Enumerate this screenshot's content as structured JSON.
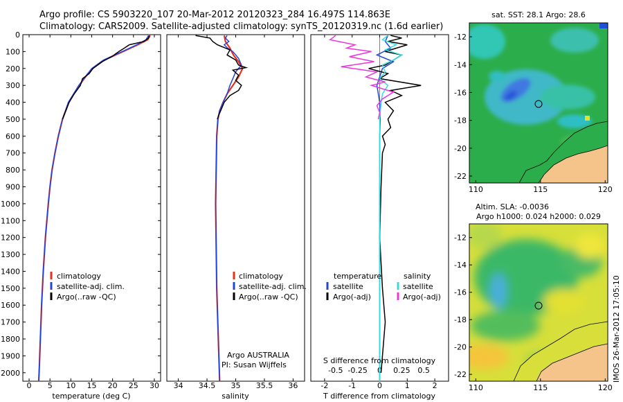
{
  "header": {
    "line1": "Argo profile: CS 5903220_107 20-Mar-2012 20120323_284 16.497S 114.863E",
    "line2": "Climatology: CARS2009. Satellite-adjusted climatology: synTS_20120319.nc (1.6d earlier)"
  },
  "colors": {
    "climatology": "#e8301a",
    "satellite": "#2244dd",
    "argo": "#000000",
    "sal_satellite": "#33dddd",
    "sal_argo": "#ee33dd",
    "land": "#f4c48a"
  },
  "chart_data": [
    {
      "type": "line",
      "panel": "temperature",
      "xlabel": "temperature (deg C)",
      "ylabel": "",
      "xlim": [
        -1.5,
        31.5
      ],
      "ylim": [
        2050,
        0
      ],
      "xticks": [
        "0",
        "5",
        "10",
        "15",
        "20",
        "25",
        "30"
      ],
      "xtick_values": [
        0,
        5,
        10,
        15,
        20,
        25,
        30
      ],
      "yticks": [
        "0",
        "100",
        "200",
        "300",
        "400",
        "500",
        "600",
        "700",
        "800",
        "900",
        "1000",
        "1100",
        "1200",
        "1300",
        "1400",
        "1500",
        "1600",
        "1700",
        "1800",
        "1900",
        "2000"
      ],
      "ytick_values": [
        0,
        100,
        200,
        300,
        400,
        500,
        600,
        700,
        800,
        900,
        1000,
        1100,
        1200,
        1300,
        1400,
        1500,
        1600,
        1700,
        1800,
        1900,
        2000
      ],
      "legend": [
        "climatology",
        "satellite-adj. clim.",
        "Argo(..raw -QC)"
      ],
      "series": [
        {
          "name": "climatology",
          "color_key": "climatology",
          "depth": [
            5,
            30,
            60,
            100,
            150,
            200,
            250,
            300,
            400,
            500,
            600,
            700,
            800,
            900,
            1000,
            1200,
            1400,
            1600,
            1800,
            2000,
            2050
          ],
          "values": [
            29.0,
            28.4,
            26.0,
            22.5,
            18.0,
            15.2,
            13.5,
            12.0,
            9.5,
            8.0,
            7.0,
            6.2,
            5.5,
            5.0,
            4.6,
            3.9,
            3.4,
            3.0,
            2.7,
            2.4,
            2.3
          ]
        },
        {
          "name": "satellite-adj. clim.",
          "color_key": "satellite",
          "depth": [
            5,
            30,
            60,
            100,
            150,
            200,
            250,
            300,
            400,
            500,
            600,
            700,
            800,
            900,
            1000,
            1200,
            1400,
            1600,
            1800,
            2000,
            2050
          ],
          "values": [
            28.6,
            28.0,
            25.8,
            22.3,
            17.8,
            15.0,
            13.4,
            11.9,
            9.4,
            8.0,
            7.0,
            6.2,
            5.5,
            5.0,
            4.6,
            3.9,
            3.4,
            3.0,
            2.7,
            2.4,
            2.3
          ]
        },
        {
          "name": "Argo(..raw -QC)",
          "color_key": "argo",
          "depth": [
            5,
            20,
            40,
            60,
            80,
            100,
            130,
            160,
            200,
            230,
            260,
            300,
            350,
            400,
            450,
            500
          ],
          "values": [
            28.8,
            28.6,
            27.5,
            24.0,
            22.8,
            21.5,
            19.8,
            17.5,
            15.3,
            14.4,
            12.8,
            12.3,
            10.8,
            9.6,
            8.8,
            8.0
          ]
        }
      ]
    },
    {
      "type": "line",
      "panel": "salinity",
      "xlabel": "salinity",
      "xlim": [
        33.8,
        36.2
      ],
      "ylim": [
        2050,
        0
      ],
      "xticks": [
        "34",
        "34.5",
        "35",
        "35.5",
        "36"
      ],
      "xtick_values": [
        34,
        34.5,
        35,
        35.5,
        36
      ],
      "legend": [
        "climatology",
        "satellite-adj. clim.",
        "Argo(..raw -QC)"
      ],
      "annotation": [
        "Argo AUSTRALIA",
        "PI: Susan Wijffels"
      ],
      "series": [
        {
          "name": "climatology",
          "color_key": "climatology",
          "depth": [
            5,
            40,
            80,
            120,
            160,
            200,
            250,
            300,
            350,
            400,
            450,
            500,
            600,
            800,
            1000,
            1500,
            2050
          ],
          "values": [
            34.8,
            34.82,
            34.9,
            34.96,
            35.05,
            35.12,
            35.05,
            34.95,
            34.85,
            34.78,
            34.72,
            34.69,
            34.67,
            34.66,
            34.65,
            34.67,
            34.72
          ]
        },
        {
          "name": "satellite-adj. clim.",
          "color_key": "satellite",
          "depth": [
            5,
            20,
            40,
            60,
            80,
            100,
            140,
            180,
            220,
            260,
            300,
            350,
            400,
            450,
            500,
            600,
            800,
            1000,
            1500,
            2050
          ],
          "values": [
            34.85,
            34.82,
            34.88,
            34.8,
            34.86,
            34.95,
            35.05,
            35.1,
            35.0,
            34.95,
            34.9,
            34.85,
            34.78,
            34.72,
            34.69,
            34.67,
            34.66,
            34.65,
            34.67,
            34.72
          ]
        },
        {
          "name": "Argo(..raw -QC)",
          "color_key": "argo",
          "depth": [
            5,
            20,
            40,
            60,
            90,
            120,
            150,
            180,
            195,
            210,
            240,
            270,
            300,
            330,
            360,
            400,
            440,
            480,
            500
          ],
          "values": [
            34.3,
            34.55,
            34.6,
            34.68,
            34.9,
            34.85,
            35.0,
            35.05,
            35.18,
            34.95,
            35.05,
            35.0,
            35.1,
            35.05,
            34.9,
            34.8,
            34.75,
            34.7,
            34.68
          ]
        }
      ]
    },
    {
      "type": "line",
      "panel": "difference",
      "xlabel": "T difference from climatology",
      "xlabel_top": "S difference from climatology",
      "xlim": [
        -2.5,
        2.5
      ],
      "ylim": [
        2050,
        0
      ],
      "xticks": [
        "-2",
        "-1",
        "0",
        "1",
        "2"
      ],
      "xtick_values": [
        -2,
        -1,
        0,
        1,
        2
      ],
      "sticks": [
        "-0.5",
        "-0.25",
        "0",
        "0.25",
        "0.5"
      ],
      "stick_values": [
        -1.6,
        -0.8,
        0,
        0.8,
        1.6
      ],
      "legend_left_title": "temperature",
      "legend_right_title": "salinity",
      "legend": [
        "satellite",
        "Argo(-adj)",
        "satellite",
        "Argo(-adj)"
      ],
      "series": [
        {
          "name": "temperature satellite",
          "color_key": "satellite",
          "depth": [
            5,
            40,
            80,
            120,
            160,
            200,
            250,
            300,
            400,
            500,
            600,
            800,
            1000,
            1500,
            2050
          ],
          "values": [
            0.3,
            0.2,
            0.4,
            -0.1,
            0.5,
            0.1,
            0.0,
            -0.1,
            0.0,
            0.02,
            0.0,
            0.0,
            0.0,
            0.0,
            0.0
          ]
        },
        {
          "name": "temperature Argo(-adj)",
          "color_key": "argo",
          "depth": [
            5,
            20,
            40,
            60,
            80,
            100,
            120,
            150,
            180,
            200,
            230,
            260,
            300,
            330,
            360,
            400,
            450,
            500,
            550,
            600,
            650,
            700,
            900,
            1200,
            1500,
            1700,
            1800,
            1900,
            2000
          ],
          "values": [
            0.4,
            0.8,
            0.3,
            1.0,
            0.6,
            0.2,
            0.8,
            0.5,
            0.2,
            -0.4,
            0.3,
            0.0,
            1.5,
            0.4,
            0.8,
            0.2,
            0.5,
            0.3,
            0.4,
            0.1,
            0.2,
            0.1,
            0.05,
            0.0,
            0.1,
            0.2,
            0.15,
            0.1,
            0.05
          ]
        },
        {
          "name": "salinity satellite",
          "color_key": "sal_satellite",
          "depth": [
            5,
            30,
            60,
            90,
            120,
            150,
            180,
            220,
            260,
            300,
            350,
            400,
            500,
            700,
            1000,
            1500,
            2050
          ],
          "values": [
            0.3,
            0.1,
            0.6,
            0.2,
            0.8,
            0.5,
            0.1,
            0.2,
            0.0,
            0.3,
            0.1,
            0.05,
            0.0,
            0.0,
            0.0,
            0.0,
            0.0
          ]
        },
        {
          "name": "salinity Argo(-adj)",
          "color_key": "sal_argo",
          "depth": [
            5,
            30,
            60,
            80,
            100,
            130,
            160,
            190,
            220,
            250,
            280,
            300,
            340,
            380,
            420,
            460,
            500
          ],
          "values": [
            -1.6,
            -1.8,
            -0.9,
            -1.2,
            -0.3,
            -1.1,
            -0.2,
            -1.4,
            -0.1,
            -0.5,
            0.2,
            -0.3,
            0.5,
            0.1,
            -0.1,
            0.0,
            -0.05
          ]
        }
      ]
    },
    {
      "type": "heatmap",
      "panel": "sst-map",
      "title": "sat. SST: 28.1  Argo: 28.6",
      "xlim": [
        109.5,
        120.2
      ],
      "ylim": [
        -22.5,
        -11.0
      ],
      "xticks": [
        "110",
        "115",
        "120"
      ],
      "xtick_values": [
        110,
        115,
        120
      ],
      "yticks": [
        "-12",
        "-14",
        "-16",
        "-18",
        "-20",
        "-22"
      ],
      "ytick_values": [
        -12,
        -14,
        -16,
        -18,
        -20,
        -22
      ],
      "marker": {
        "lon": 114.863,
        "lat": -16.497
      }
    },
    {
      "type": "heatmap",
      "panel": "sla-map",
      "title": "Altim. SLA: -0.0036",
      "subtitle": "Argo h1000: 0.024 h2000: 0.029",
      "xlim": [
        109.5,
        120.2
      ],
      "ylim": [
        -22.5,
        -11.0
      ],
      "xticks": [
        "110",
        "115",
        "120"
      ],
      "xtick_values": [
        110,
        115,
        120
      ],
      "yticks": [
        "-12",
        "-14",
        "-16",
        "-18",
        "-20",
        "-22"
      ],
      "ytick_values": [
        -12,
        -14,
        -16,
        -18,
        -20,
        -22
      ],
      "marker": {
        "lon": 114.863,
        "lat": -16.497
      }
    }
  ],
  "stamp": "IMOS 26-Mar-2012 17:05:10"
}
